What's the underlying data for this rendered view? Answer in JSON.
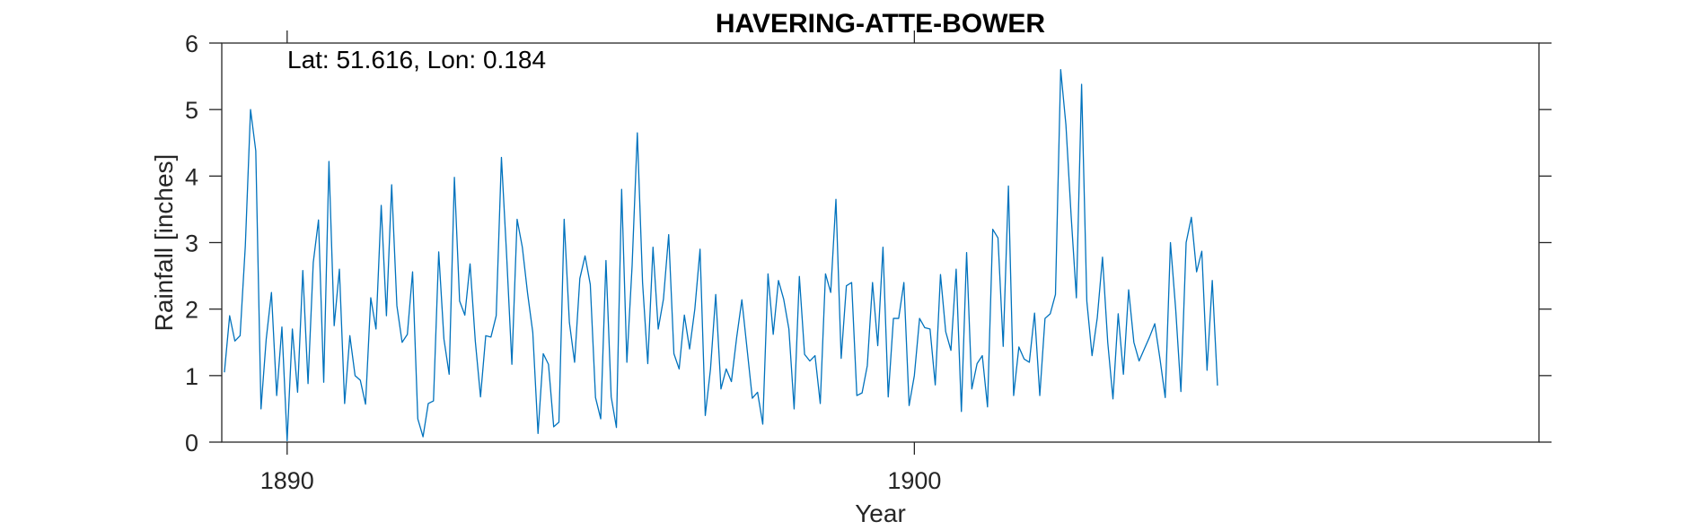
{
  "chart_data": {
    "type": "line",
    "title": "HAVERING-ATTE-BOWER",
    "xlabel": "Year",
    "ylabel": "Rainfall [inches]",
    "annotation": "Lat: 51.616, Lon: 0.184",
    "xlim": [
      1888.958,
      1909.958
    ],
    "ylim": [
      0,
      6
    ],
    "x_ticks": [
      1890,
      1900
    ],
    "x_tick_labels": [
      "1890",
      "1900"
    ],
    "y_ticks": [
      0,
      1,
      2,
      3,
      4,
      5,
      6
    ],
    "y_tick_labels": [
      "0",
      "1",
      "2",
      "3",
      "4",
      "5",
      "6"
    ],
    "grid": false,
    "legend": "none",
    "colors": {
      "line": "#0072BD",
      "axis": "#262626"
    },
    "series": [
      {
        "x_start": 1889.0,
        "x_step": 0.08333,
        "values": [
          1.05,
          1.9,
          1.52,
          1.6,
          2.95,
          5.0,
          4.38,
          0.5,
          1.55,
          2.25,
          0.7,
          1.73,
          0.02,
          1.7,
          0.75,
          2.58,
          0.88,
          2.7,
          3.34,
          0.9,
          4.22,
          1.75,
          2.6,
          0.58,
          1.6,
          1.0,
          0.93,
          0.57,
          2.17,
          1.7,
          3.56,
          1.9,
          3.87,
          2.05,
          1.5,
          1.62,
          2.56,
          0.35,
          0.08,
          0.58,
          0.62,
          2.86,
          1.55,
          1.02,
          3.98,
          2.12,
          1.91,
          2.68,
          1.52,
          0.68,
          1.6,
          1.58,
          1.9,
          4.28,
          2.8,
          1.17,
          3.35,
          2.93,
          2.24,
          1.65,
          0.13,
          1.33,
          1.17,
          0.23,
          0.3,
          3.35,
          1.8,
          1.2,
          2.46,
          2.8,
          2.37,
          0.67,
          0.35,
          2.73,
          0.68,
          0.22,
          3.8,
          1.2,
          2.65,
          4.65,
          2.4,
          1.18,
          2.93,
          1.7,
          2.15,
          3.12,
          1.33,
          1.1,
          1.91,
          1.4,
          2.0,
          2.9,
          0.4,
          1.1,
          2.22,
          0.8,
          1.1,
          0.91,
          1.57,
          2.14,
          1.4,
          0.66,
          0.75,
          0.27,
          2.53,
          1.62,
          2.43,
          2.15,
          1.7,
          0.5,
          2.49,
          1.32,
          1.22,
          1.3,
          0.58,
          2.53,
          2.25,
          3.65,
          1.26,
          2.35,
          2.4,
          0.7,
          0.74,
          1.15,
          2.4,
          1.45,
          2.93,
          0.68,
          1.86,
          1.86,
          2.4,
          0.55,
          1.0,
          1.86,
          1.72,
          1.7,
          0.86,
          2.52,
          1.66,
          1.38,
          2.6,
          0.46,
          2.85,
          0.8,
          1.18,
          1.3,
          0.53,
          3.2,
          3.07,
          1.44,
          3.85,
          0.7,
          1.43,
          1.25,
          1.2,
          1.94,
          0.7,
          1.86,
          1.93,
          2.22,
          5.6,
          4.77,
          3.4,
          2.17,
          5.38,
          2.12,
          1.3,
          1.87,
          2.78,
          1.5,
          0.65,
          1.93,
          1.02,
          2.29,
          1.5,
          1.22,
          1.4,
          1.58,
          1.78,
          1.25,
          0.67,
          3.0,
          2.0,
          0.76,
          3.0,
          3.38,
          2.56,
          2.87,
          1.08,
          2.43,
          0.85
        ]
      }
    ]
  }
}
